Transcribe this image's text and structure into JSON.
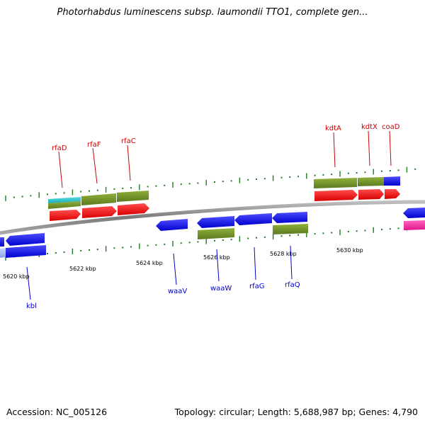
{
  "title": "Photorhabdus luminescens subsp. laumondii TTO1, complete gen...",
  "footer": {
    "accession": "Accession: NC_005126",
    "stats": "Topology: circular; Length: 5,688,987 bp; Genes: 4,790"
  },
  "colors": {
    "backbone": "#8c8c8c",
    "tick": "#1f7a1f",
    "forward_label": "#cc0000",
    "reverse_label": "#0000cc",
    "cds_red": "#ff1a1a",
    "cds_blue": "#1a1aff",
    "olive": "#6b8e23",
    "cyan": "#22c4cc",
    "magenta": "#ff33aa"
  },
  "scale_labels": [
    "5620 kbp",
    "5622 kbp",
    "5624 kbp",
    "5626 kbp",
    "5628 kbp",
    "5630 kbp"
  ],
  "forward_genes": [
    "rfaD",
    "rfaF",
    "rfaC",
    "kdtA",
    "kdtX",
    "coaD"
  ],
  "reverse_genes": [
    "kbl",
    "waaV",
    "waaW",
    "rfaG",
    "rfaQ"
  ]
}
